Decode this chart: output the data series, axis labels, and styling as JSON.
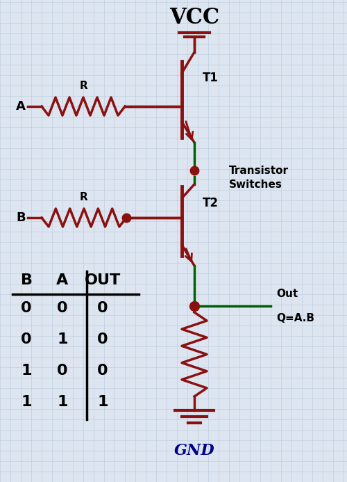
{
  "bg_color": "#dde6f0",
  "grid_color": "#bfcfdf",
  "wire_color": "#8B1010",
  "green_color": "#006000",
  "dot_color": "#8B1010",
  "text_color": "#000000",
  "vcc_label": "VCC",
  "gnd_label": "GND",
  "t1_label": "T1",
  "t2_label": "T2",
  "a_label": "A",
  "b_label": "B",
  "r_label": "R",
  "out_label": "Out",
  "q_label": "Q=A.B",
  "ts_line1": "Transistor",
  "ts_line2": "Switches",
  "truth_table": {
    "headers": [
      "B",
      "A",
      "OUT"
    ],
    "rows": [
      [
        0,
        0,
        0
      ],
      [
        0,
        1,
        0
      ],
      [
        1,
        0,
        0
      ],
      [
        1,
        1,
        1
      ]
    ]
  }
}
